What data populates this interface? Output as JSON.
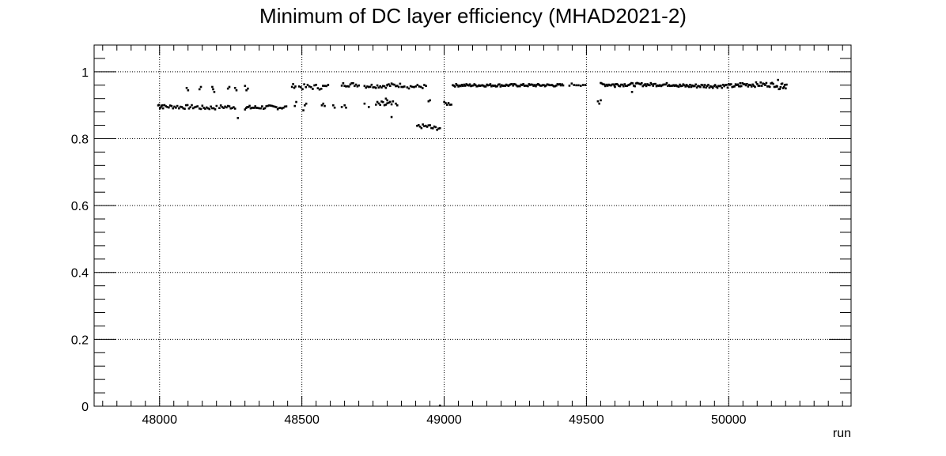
{
  "chart_data": {
    "type": "scatter",
    "title": "Minimum of DC layer efficiency (MHAD2021-2)",
    "xlabel": "run",
    "ylabel": "",
    "xlim": [
      47770,
      50430
    ],
    "ylim": [
      0,
      1.08
    ],
    "x_major_ticks": [
      48000,
      48500,
      49000,
      49500,
      50000
    ],
    "x_tick_labels": [
      "48000",
      "48500",
      "49000",
      "49500",
      "50000"
    ],
    "y_major_ticks": [
      0,
      0.2,
      0.4,
      0.6,
      0.8,
      1
    ],
    "y_tick_labels": [
      "0",
      "0.2",
      "0.4",
      "0.6",
      "0.8",
      "1"
    ],
    "grid": true,
    "marker_color": "#000000",
    "segments": [
      {
        "x0": 47995,
        "x1": 48010,
        "step": 3,
        "y": 0.9,
        "amp": 0.012
      },
      {
        "x0": 48012,
        "x1": 48065,
        "step": 5,
        "y": 0.896,
        "amp": 0.006
      },
      {
        "x0": 48068,
        "x1": 48135,
        "step": 5,
        "y": 0.895,
        "amp": 0.006
      },
      {
        "x0": 48140,
        "x1": 48200,
        "step": 5,
        "y": 0.893,
        "amp": 0.006
      },
      {
        "x0": 48210,
        "x1": 48265,
        "step": 5,
        "y": 0.895,
        "amp": 0.006
      },
      {
        "x0": 48300,
        "x1": 48345,
        "step": 4,
        "y": 0.893,
        "amp": 0.006
      },
      {
        "x0": 48350,
        "x1": 48445,
        "step": 5,
        "y": 0.894,
        "amp": 0.006
      },
      {
        "x0": 48465,
        "x1": 48480,
        "step": 4,
        "y": 0.958,
        "amp": 0.006
      },
      {
        "x0": 48490,
        "x1": 48595,
        "step": 6,
        "y": 0.955,
        "amp": 0.008
      },
      {
        "x0": 48640,
        "x1": 48700,
        "step": 5,
        "y": 0.962,
        "amp": 0.006
      },
      {
        "x0": 48720,
        "x1": 48800,
        "step": 5,
        "y": 0.958,
        "amp": 0.006
      },
      {
        "x0": 48800,
        "x1": 48860,
        "step": 5,
        "y": 0.96,
        "amp": 0.006
      },
      {
        "x0": 48870,
        "x1": 48940,
        "step": 6,
        "y": 0.956,
        "amp": 0.006
      },
      {
        "x0": 48760,
        "x1": 48820,
        "step": 5,
        "y": 0.902,
        "amp": 0.01
      },
      {
        "x0": 48905,
        "x1": 48950,
        "step": 5,
        "y": 0.837,
        "amp": 0.006
      },
      {
        "x0": 48955,
        "x1": 48985,
        "step": 5,
        "y": 0.832,
        "amp": 0.006
      },
      {
        "x0": 49000,
        "x1": 49025,
        "step": 5,
        "y": 0.905,
        "amp": 0.005
      },
      {
        "x0": 49030,
        "x1": 49420,
        "step": 4,
        "y": 0.96,
        "amp": 0.004
      },
      {
        "x0": 49440,
        "x1": 49500,
        "step": 8,
        "y": 0.962,
        "amp": 0.004
      },
      {
        "x0": 49550,
        "x1": 49820,
        "step": 4,
        "y": 0.962,
        "amp": 0.005
      },
      {
        "x0": 49820,
        "x1": 50040,
        "step": 4,
        "y": 0.958,
        "amp": 0.006
      },
      {
        "x0": 50040,
        "x1": 50170,
        "step": 4,
        "y": 0.962,
        "amp": 0.007
      },
      {
        "x0": 50170,
        "x1": 50205,
        "step": 3,
        "y": 0.962,
        "amp": 0.014
      }
    ],
    "points": [
      {
        "x": 48095,
        "y": 0.952
      },
      {
        "x": 48100,
        "y": 0.945
      },
      {
        "x": 48140,
        "y": 0.948
      },
      {
        "x": 48145,
        "y": 0.955
      },
      {
        "x": 48185,
        "y": 0.955
      },
      {
        "x": 48188,
        "y": 0.948
      },
      {
        "x": 48192,
        "y": 0.94
      },
      {
        "x": 48240,
        "y": 0.95
      },
      {
        "x": 48245,
        "y": 0.955
      },
      {
        "x": 48265,
        "y": 0.952
      },
      {
        "x": 48270,
        "y": 0.945
      },
      {
        "x": 48300,
        "y": 0.958
      },
      {
        "x": 48305,
        "y": 0.945
      },
      {
        "x": 48310,
        "y": 0.95
      },
      {
        "x": 48275,
        "y": 0.862
      },
      {
        "x": 48475,
        "y": 0.898
      },
      {
        "x": 48480,
        "y": 0.91
      },
      {
        "x": 48505,
        "y": 0.885
      },
      {
        "x": 48510,
        "y": 0.9
      },
      {
        "x": 48515,
        "y": 0.905
      },
      {
        "x": 48570,
        "y": 0.9
      },
      {
        "x": 48575,
        "y": 0.905
      },
      {
        "x": 48580,
        "y": 0.898
      },
      {
        "x": 48610,
        "y": 0.9
      },
      {
        "x": 48615,
        "y": 0.893
      },
      {
        "x": 48640,
        "y": 0.895
      },
      {
        "x": 48650,
        "y": 0.9
      },
      {
        "x": 48655,
        "y": 0.893
      },
      {
        "x": 48720,
        "y": 0.905
      },
      {
        "x": 48735,
        "y": 0.895
      },
      {
        "x": 48795,
        "y": 0.92
      },
      {
        "x": 48800,
        "y": 0.915
      },
      {
        "x": 48830,
        "y": 0.905
      },
      {
        "x": 48835,
        "y": 0.9
      },
      {
        "x": 48815,
        "y": 0.865
      },
      {
        "x": 48945,
        "y": 0.912
      },
      {
        "x": 48950,
        "y": 0.915
      },
      {
        "x": 48985,
        "y": 0.002
      },
      {
        "x": 49540,
        "y": 0.912
      },
      {
        "x": 49545,
        "y": 0.905
      },
      {
        "x": 49550,
        "y": 0.915
      },
      {
        "x": 49600,
        "y": 0.955
      },
      {
        "x": 49660,
        "y": 0.94
      }
    ]
  }
}
